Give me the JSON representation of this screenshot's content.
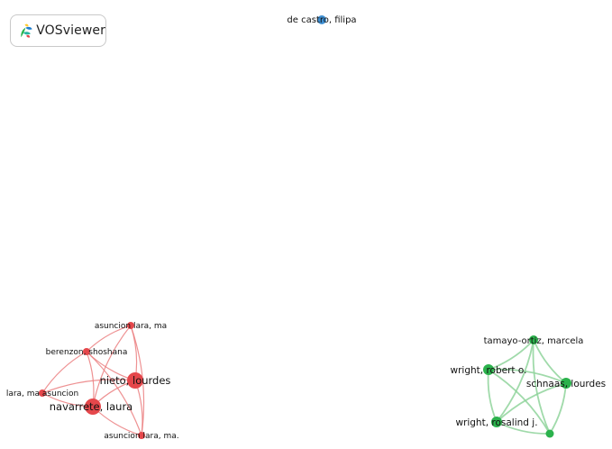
{
  "app": {
    "logo_text": "VOSviewer"
  },
  "colors": {
    "cluster1": "#e5474b",
    "cluster2": "#2bb24c",
    "cluster3": "#3f8fd2",
    "edge1": "#eb7f80",
    "edge2": "#8fd49b"
  },
  "nodes": [
    {
      "id": "de-castro",
      "label": "de castro, filipa",
      "cluster": "cluster3"
    },
    {
      "id": "asuncion-lara-ma",
      "label": "asuncion lara, ma",
      "cluster": "cluster1"
    },
    {
      "id": "berenzon",
      "label": "berenzon, shoshana",
      "cluster": "cluster1"
    },
    {
      "id": "nieto",
      "label": "nieto, lourdes",
      "cluster": "cluster1"
    },
    {
      "id": "lara-ma",
      "label": "lara, ma asuncion",
      "cluster": "cluster1"
    },
    {
      "id": "navarrete",
      "label": "navarrete, laura",
      "cluster": "cluster1"
    },
    {
      "id": "asuncion-lara-ma-dot",
      "label": "asuncion lara, ma.",
      "cluster": "cluster1"
    },
    {
      "id": "tamayo",
      "label": "tamayo-ortiz, marcela",
      "cluster": "cluster2"
    },
    {
      "id": "wright-robert",
      "label": "wright, robert o.",
      "cluster": "cluster2"
    },
    {
      "id": "schnaas",
      "label": "schnaas, lourdes",
      "cluster": "cluster2"
    },
    {
      "id": "wright-rosalind",
      "label": "wright, rosalind j.",
      "cluster": "cluster2"
    },
    {
      "id": "green-unlabeled",
      "label": "",
      "cluster": "cluster2"
    }
  ],
  "links": [
    [
      "asuncion-lara-ma",
      "berenzon"
    ],
    [
      "asuncion-lara-ma",
      "nieto"
    ],
    [
      "asuncion-lara-ma",
      "navarrete"
    ],
    [
      "asuncion-lara-ma",
      "asuncion-lara-ma-dot"
    ],
    [
      "berenzon",
      "nieto"
    ],
    [
      "berenzon",
      "navarrete"
    ],
    [
      "berenzon",
      "lara-ma"
    ],
    [
      "berenzon",
      "asuncion-lara-ma-dot"
    ],
    [
      "nieto",
      "navarrete"
    ],
    [
      "nieto",
      "asuncion-lara-ma-dot"
    ],
    [
      "nieto",
      "lara-ma"
    ],
    [
      "navarrete",
      "lara-ma"
    ],
    [
      "navarrete",
      "asuncion-lara-ma-dot"
    ],
    [
      "tamayo",
      "wright-robert"
    ],
    [
      "tamayo",
      "schnaas"
    ],
    [
      "tamayo",
      "wright-rosalind"
    ],
    [
      "tamayo",
      "green-unlabeled"
    ],
    [
      "wright-robert",
      "schnaas"
    ],
    [
      "wright-robert",
      "wright-rosalind"
    ],
    [
      "wright-robert",
      "green-unlabeled"
    ],
    [
      "schnaas",
      "wright-rosalind"
    ],
    [
      "schnaas",
      "green-unlabeled"
    ],
    [
      "wright-rosalind",
      "green-unlabeled"
    ]
  ]
}
